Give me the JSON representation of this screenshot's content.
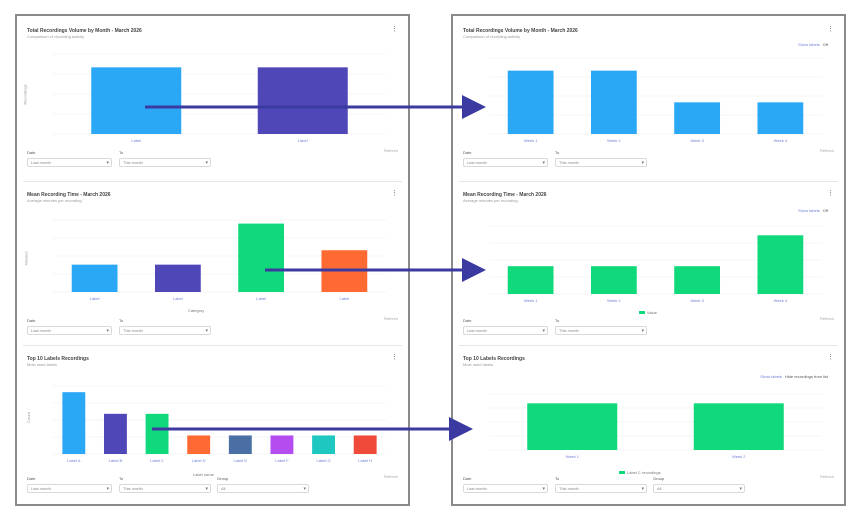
{
  "colors": {
    "blue": "#2aa8f5",
    "purple": "#4f46b8",
    "green": "#0fd97a",
    "orange": "#ff6a33",
    "steel": "#4a6fa5",
    "magenta": "#b44cf0",
    "teal": "#1ec7c0",
    "red": "#f04b3a",
    "arrow": "#3a3aa0"
  },
  "left": {
    "cards": [
      {
        "title": "Total Recordings Volume by Month - March 2026",
        "subtitle": "Comparison of recording activity",
        "menu": "⋮",
        "ylabel": "Recordings",
        "xlabel": "",
        "categories": [
          "Label",
          "Label"
        ],
        "values": [
          100,
          100
        ],
        "colors": [
          "#2aa8f5",
          "#4f46b8"
        ],
        "ylim": [
          0,
          120
        ],
        "filters": {
          "a_label": "Date",
          "a_value": "Last month",
          "b_label": "To",
          "b_value": "This month"
        },
        "footnote": "Refresh"
      },
      {
        "title": "Mean Recording Time - March 2026",
        "subtitle": "Average minutes per recording",
        "menu": "⋮",
        "ylabel": "Minutes",
        "xlabel": "Category",
        "categories": [
          "Label",
          "Label",
          "Label",
          "Label"
        ],
        "values": [
          38,
          38,
          95,
          58
        ],
        "colors": [
          "#2aa8f5",
          "#4f46b8",
          "#0fd97a",
          "#ff6a33"
        ],
        "ylim": [
          0,
          100
        ],
        "filters": {
          "a_label": "Date",
          "a_value": "Last month",
          "b_label": "To",
          "b_value": "This month"
        },
        "footnote": "Refresh"
      },
      {
        "title": "Top 10 Labels Recordings",
        "subtitle": "Most used labels",
        "menu": "⋮",
        "ylabel": "Count",
        "xlabel": "Label name",
        "categories": [
          "Label A",
          "Label B",
          "Label C",
          "Label D",
          "Label E",
          "Label F",
          "Label G",
          "Label H"
        ],
        "values": [
          100,
          65,
          65,
          30,
          30,
          30,
          30,
          30
        ],
        "colors": [
          "#2aa8f5",
          "#4f46b8",
          "#0fd97a",
          "#ff6a33",
          "#4a6fa5",
          "#b44cf0",
          "#1ec7c0",
          "#f04b3a"
        ],
        "ylim": [
          0,
          110
        ],
        "filters": {
          "a_label": "Date",
          "a_value": "Last month",
          "b_label": "To",
          "b_value": "This month",
          "c_label": "Group",
          "c_value": "All"
        },
        "footnote": "Refresh"
      }
    ]
  },
  "right": {
    "cards": [
      {
        "title": "Total Recordings Volume by Month - March 2026",
        "subtitle": "Comparison of recording activity",
        "menu": "⋮",
        "toggle_a": "Show labels",
        "toggle_b": "Off",
        "categories": [
          "Week 1",
          "Week 2",
          "Week 3",
          "Week 4"
        ],
        "values": [
          100,
          100,
          50,
          50
        ],
        "colors": [
          "#2aa8f5",
          "#2aa8f5",
          "#2aa8f5",
          "#2aa8f5"
        ],
        "ylim": [
          0,
          120
        ],
        "filters": {
          "a_label": "Date",
          "a_value": "Last month",
          "b_label": "To",
          "b_value": "This month"
        },
        "footnote": "Refresh"
      },
      {
        "title": "Mean Recording Time - March 2026",
        "subtitle": "Average minutes per recording",
        "menu": "⋮",
        "toggle_a": "Show labels",
        "toggle_b": "Off",
        "legend": "Value",
        "categories": [
          "Week 1",
          "Week 2",
          "Week 3",
          "Week 4"
        ],
        "values": [
          45,
          45,
          45,
          95
        ],
        "colors": [
          "#0fd97a",
          "#0fd97a",
          "#0fd97a",
          "#0fd97a"
        ],
        "ylim": [
          0,
          110
        ],
        "filters": {
          "a_label": "Date",
          "a_value": "Last month",
          "b_label": "To",
          "b_value": "This month"
        },
        "footnote": "Refresh"
      },
      {
        "title": "Top 10 Labels Recordings",
        "subtitle": "Most used labels",
        "menu": "⋮",
        "toggle_a": "Show labels",
        "toggle_b": "Hide recordings from list",
        "legend": "Label C recordings",
        "categories": [
          "Week 1",
          "Week 2"
        ],
        "values": [
          100,
          100
        ],
        "colors": [
          "#0fd97a",
          "#0fd97a"
        ],
        "ylim": [
          0,
          120
        ],
        "filters": {
          "a_label": "Date",
          "a_value": "Last month",
          "b_label": "To",
          "b_value": "This month",
          "c_label": "Group",
          "c_value": "All"
        },
        "footnote": "Refresh"
      }
    ]
  }
}
